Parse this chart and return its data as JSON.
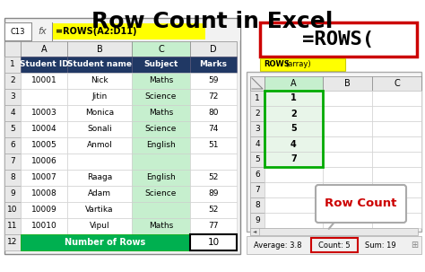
{
  "title": "Row Count in Excel",
  "bg_color": "#ffffff",
  "title_fontsize": 18,
  "title_fontweight": "bold",
  "left_table": {
    "formula_cell": "C13",
    "formula_text": "=ROWS(A2:D11)",
    "col_headers": [
      "A",
      "B",
      "C",
      "D"
    ],
    "header_row": [
      "Student ID",
      "Student name",
      "Subject",
      "Marks"
    ],
    "header_bg": "#203864",
    "header_fg": "#ffffff",
    "data": [
      [
        "10001",
        "Nick",
        "Maths",
        "59"
      ],
      [
        "",
        "Jitin",
        "Science",
        "72"
      ],
      [
        "10003",
        "Monica",
        "Maths",
        "80"
      ],
      [
        "10004",
        "Sonali",
        "Science",
        "74"
      ],
      [
        "10005",
        "Anmol",
        "English",
        "51"
      ],
      [
        "10006",
        "",
        "",
        ""
      ],
      [
        "10007",
        "Raaga",
        "English",
        "52"
      ],
      [
        "10008",
        "Adam",
        "Science",
        "89"
      ],
      [
        "10009",
        "Vartika",
        "",
        "52"
      ],
      [
        "10010",
        "Vipul",
        "Maths",
        "77"
      ],
      [
        "",
        "",
        "",
        ""
      ]
    ],
    "row_labels": [
      "1",
      "2",
      "3",
      "4",
      "5",
      "6",
      "7",
      "8",
      "9",
      "10",
      "11",
      "12"
    ],
    "footer_text": "Number of Rows",
    "footer_value": "10",
    "footer_bg": "#00b050",
    "footer_fg": "#ffffff"
  },
  "right_formula_text": "=ROWS(",
  "right_formula_border": "#cc0000",
  "right_tooltip_text": "ROWS(array)",
  "right_tooltip_bg": "#ffff00",
  "mini_values": [
    "1",
    "2",
    "5",
    "4",
    "7",
    "",
    "",
    "",
    ""
  ],
  "mini_row_labels": [
    "1",
    "2",
    "3",
    "4",
    "5",
    "6",
    "7",
    "8",
    "9"
  ],
  "mini_col_headers": [
    "A",
    "B",
    "C"
  ],
  "row_count_text": "Row Count",
  "row_count_color": "#cc0000",
  "statusbar_text1": "Average: 3.8",
  "statusbar_count": "Count: 5",
  "statusbar_count_border": "#cc0000",
  "statusbar_text3": "Sum: 19"
}
